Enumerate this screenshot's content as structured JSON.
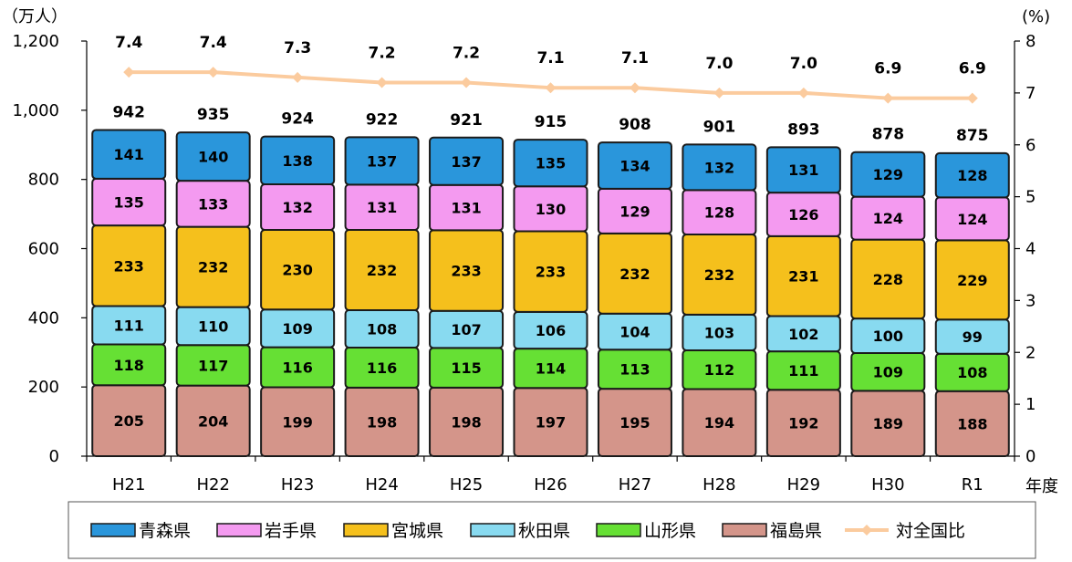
{
  "chart_data": {
    "type": "bar",
    "stacked": true,
    "y_unit": "（万人）",
    "y2_unit": "(%)",
    "xlabel": "年度",
    "categories": [
      "H21",
      "H22",
      "H23",
      "H24",
      "H25",
      "H26",
      "H27",
      "H28",
      "H29",
      "H30",
      "R1"
    ],
    "ylim": [
      0,
      1200
    ],
    "yticks": [
      "0",
      "200",
      "400",
      "600",
      "800",
      "1,000",
      "1,200"
    ],
    "y2lim": [
      0,
      8
    ],
    "y2ticks": [
      "0",
      "1",
      "2",
      "3",
      "4",
      "5",
      "6",
      "7",
      "8"
    ],
    "series": [
      {
        "name": "福島県",
        "color": "#D4958A",
        "values": [
          205,
          204,
          199,
          198,
          198,
          197,
          195,
          194,
          192,
          189,
          188
        ]
      },
      {
        "name": "山形県",
        "color": "#66E034",
        "values": [
          118,
          117,
          116,
          116,
          115,
          114,
          113,
          112,
          111,
          109,
          108
        ]
      },
      {
        "name": "秋田県",
        "color": "#88DAF0",
        "values": [
          111,
          110,
          109,
          108,
          107,
          106,
          104,
          103,
          102,
          100,
          99
        ]
      },
      {
        "name": "宮城県",
        "color": "#F5C01C",
        "values": [
          233,
          232,
          230,
          232,
          233,
          233,
          232,
          232,
          231,
          228,
          229
        ]
      },
      {
        "name": "岩手県",
        "color": "#F49AF0",
        "values": [
          135,
          133,
          132,
          131,
          131,
          130,
          129,
          128,
          126,
          124,
          124
        ]
      },
      {
        "name": "青森県",
        "color": "#2A96DB",
        "values": [
          141,
          140,
          138,
          137,
          137,
          135,
          134,
          132,
          131,
          129,
          128
        ]
      }
    ],
    "totals": [
      "942",
      "935",
      "924",
      "922",
      "921",
      "915",
      "908",
      "901",
      "893",
      "878",
      "875"
    ],
    "line": {
      "name": "対全国比",
      "color": "#FBCB9E",
      "values": [
        7.4,
        7.4,
        7.3,
        7.2,
        7.2,
        7.1,
        7.1,
        7.0,
        7.0,
        6.9,
        6.9
      ],
      "labels": [
        "7.4",
        "7.4",
        "7.3",
        "7.2",
        "7.2",
        "7.1",
        "7.1",
        "7.0",
        "7.0",
        "6.9",
        "6.9"
      ]
    },
    "legend": {
      "placement": "bottom",
      "order": [
        "青森県",
        "岩手県",
        "宮城県",
        "秋田県",
        "山形県",
        "福島県",
        "対全国比"
      ]
    }
  }
}
